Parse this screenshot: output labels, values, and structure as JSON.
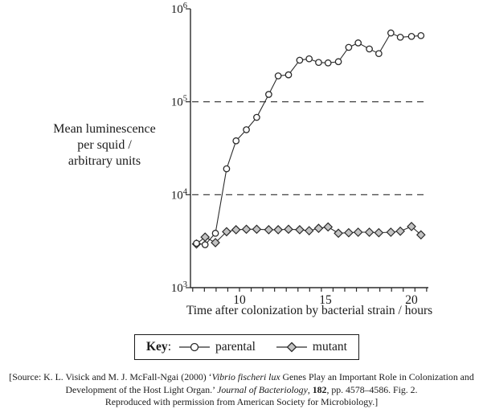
{
  "figure": {
    "key": {
      "label": "Key",
      "colon": ":",
      "items": [
        {
          "label": "parental"
        },
        {
          "label": "mutant"
        }
      ]
    },
    "source": {
      "line1_pre": "[Source: K. L. Visick and M. J. McFall-Ngai (2000) ‘",
      "line1_italic": "Vibrio fischeri lux",
      "line1_post": " Genes Play an Important Role in Colonization and",
      "line2_pre": "Development of the Host Light Organ.’ ",
      "line2_italic": "Journal of Bacteriology",
      "line2_mid": ", ",
      "line2_bold": "182",
      "line2_post": ", pp. 4578–4586. Fig. 2.",
      "line3": "Reproduced with permission from American Society for Microbiology.]"
    }
  },
  "chart_data": {
    "type": "line",
    "title": "",
    "xlabel": "Time after colonization by bacterial strain / hours",
    "ylabel": "Mean luminescence per squid / arbitrary units",
    "ylabel_lines": [
      "Mean luminescence",
      "per squid /",
      "arbitrary units"
    ],
    "x_axis": {
      "scale": "linear",
      "min": 7.15,
      "max": 20.98,
      "labeled_ticks": [
        10,
        15,
        20
      ],
      "minor_tick_step": 0.68
    },
    "y_axis": {
      "scale": "log",
      "min": 1000,
      "max": 1000000,
      "ticks": [
        1000,
        10000,
        100000,
        1000000
      ],
      "dashed_gridlines": [
        10000,
        100000
      ]
    },
    "grid": "dashed horizontal at 1e4 and 1e5 only",
    "legend_position": "bottom-key-box",
    "x": [
      7.5,
      8.0,
      8.6,
      9.25,
      9.8,
      10.4,
      11.0,
      11.7,
      12.25,
      12.85,
      13.5,
      14.05,
      14.6,
      15.15,
      15.75,
      16.35,
      16.9,
      17.55,
      18.1,
      18.8,
      19.35,
      20.0,
      20.55
    ],
    "series": [
      {
        "name": "mutant",
        "marker": "diamond",
        "marker_fill": "#c3c3c3",
        "line_color": "#2b2b2b",
        "values": [
          2950,
          3500,
          3050,
          4000,
          4200,
          4250,
          4250,
          4200,
          4200,
          4250,
          4200,
          4100,
          4350,
          4500,
          3850,
          3900,
          3950,
          3950,
          3900,
          3950,
          4050,
          4550,
          3700
        ]
      },
      {
        "name": "parental",
        "marker": "circle",
        "marker_fill": "#ffffff",
        "line_color": "#2b2b2b",
        "values": [
          3000,
          2900,
          3850,
          19000,
          38000,
          50000,
          68000,
          120000,
          190000,
          195000,
          280000,
          290000,
          265000,
          262000,
          270000,
          385000,
          430000,
          370000,
          330000,
          550000,
          495000,
          505000,
          515000
        ]
      }
    ]
  }
}
